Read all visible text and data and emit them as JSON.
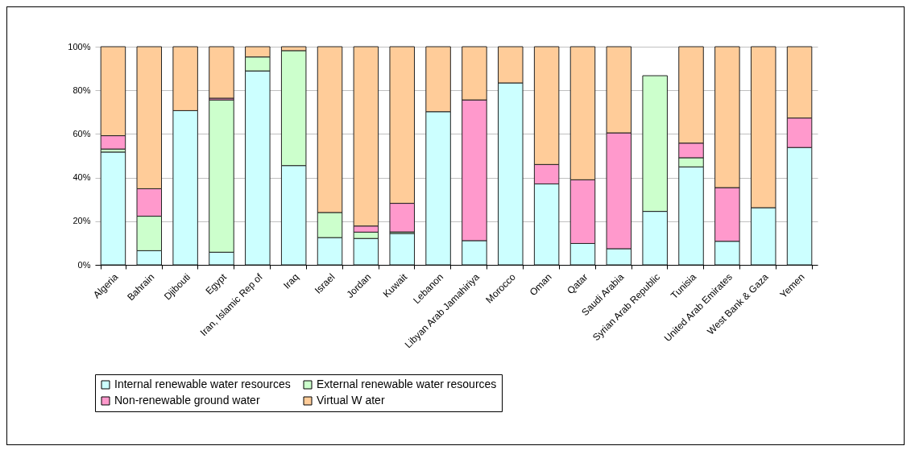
{
  "chart_data": {
    "type": "bar",
    "stacked": true,
    "categories": [
      "Algeria",
      "Bahrain",
      "Djibouti",
      "Egypt",
      "Iran, Islamic Rep of",
      "Iraq",
      "Israel",
      "Jordan",
      "Kuwait",
      "Lebanon",
      "Libyan Arab Jamahiriya",
      "Morocco",
      "Oman",
      "Qatar",
      "Saudi Arabia",
      "Syrian Arab Republic",
      "Tunisia",
      "United Arab Emirates",
      "West Bank & Gaza",
      "Yemen"
    ],
    "series": [
      {
        "name": "Internal renewable water resources",
        "color": "#ccffff",
        "values": [
          51.7,
          6.5,
          70.7,
          5.8,
          88.9,
          45.5,
          12.5,
          12.1,
          14.4,
          70.2,
          11.1,
          83.4,
          37.1,
          9.8,
          7.4,
          24.5,
          44.9,
          10.8,
          26.2,
          53.8
        ]
      },
      {
        "name": "External renewable water resources",
        "color": "#ccffcc",
        "values": [
          1.4,
          15.8,
          null,
          69.8,
          6.4,
          52.7,
          11.5,
          2.9,
          0.7,
          null,
          null,
          null,
          null,
          null,
          null,
          62.2,
          4.2,
          null,
          null,
          null
        ]
      },
      {
        "name": "Non-renewable ground water",
        "color": "#ff99cc",
        "values": [
          6.1,
          12.6,
          null,
          0.8,
          null,
          null,
          null,
          2.8,
          13.1,
          null,
          64.5,
          null,
          8.9,
          29.2,
          53.1,
          null,
          6.7,
          24.6,
          null,
          13.5
        ]
      },
      {
        "name": "Virtual W ater",
        "color": "#ffcc99",
        "values": [
          40.8,
          65.1,
          29.3,
          23.6,
          4.7,
          1.8,
          76.0,
          82.2,
          71.8,
          29.8,
          24.4,
          16.6,
          54.0,
          61.0,
          39.5,
          null,
          44.2,
          64.6,
          73.8,
          32.7
        ]
      }
    ],
    "ylim": [
      0,
      100
    ],
    "yticks": [
      {
        "value": 0,
        "label": "0%"
      },
      {
        "value": 20,
        "label": "20%"
      },
      {
        "value": 40,
        "label": "40%"
      },
      {
        "value": 60,
        "label": "60%"
      },
      {
        "value": 80,
        "label": "80%"
      },
      {
        "value": 100,
        "label": "100%"
      }
    ],
    "grid": "y",
    "legend": "bottom"
  }
}
